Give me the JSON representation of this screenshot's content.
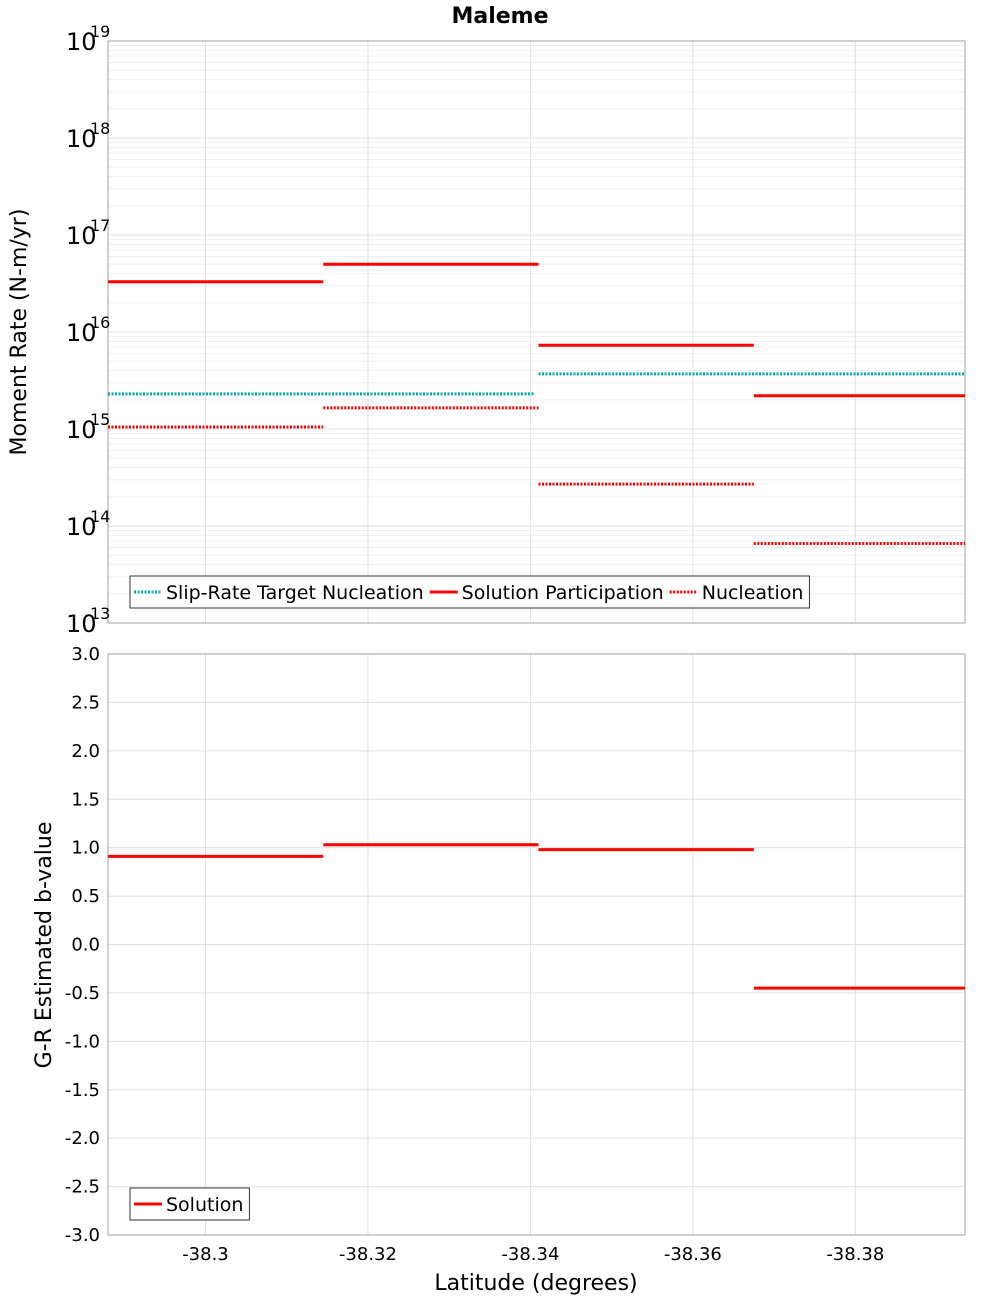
{
  "chart_data": [
    {
      "type": "line",
      "title": "Maleme",
      "xlabel": "",
      "ylabel": "Moment Rate (N-m/yr)",
      "xlim": [
        -38.288,
        -38.3935
      ],
      "x_reversed": true,
      "ylim": [
        10000000000000.0,
        1e+19
      ],
      "y_scale": "log",
      "grid": true,
      "y_ticks": [
        {
          "base": "10",
          "exp": "13"
        },
        {
          "base": "10",
          "exp": "14"
        },
        {
          "base": "10",
          "exp": "15"
        },
        {
          "base": "10",
          "exp": "16"
        },
        {
          "base": "10",
          "exp": "17"
        },
        {
          "base": "10",
          "exp": "18"
        },
        {
          "base": "10",
          "exp": "19"
        }
      ],
      "legend": {
        "placement": "bottom-left",
        "entries": [
          "Slip-Rate Target Nucleation",
          "Solution Participation",
          "Nucleation"
        ]
      },
      "series": [
        {
          "name": "Slip-Rate Target Nucleation",
          "color": "#00aaaa",
          "style": "dotted",
          "segments": [
            {
              "x0": -38.288,
              "x1": -38.3405,
              "y": 2300000000000000.0
            },
            {
              "x0": -38.341,
              "x1": -38.3935,
              "y": 3700000000000000.0
            }
          ]
        },
        {
          "name": "Solution Participation",
          "color": "#ff0000",
          "style": "solid",
          "segments": [
            {
              "x0": -38.288,
              "x1": -38.3145,
              "y": 3.3e+16
            },
            {
              "x0": -38.3145,
              "x1": -38.341,
              "y": 5e+16
            },
            {
              "x0": -38.341,
              "x1": -38.3675,
              "y": 7300000000000000.0
            },
            {
              "x0": -38.3675,
              "x1": -38.3935,
              "y": 2200000000000000.0
            }
          ]
        },
        {
          "name": "Nucleation",
          "color": "#ff0000",
          "style": "dotted",
          "segments": [
            {
              "x0": -38.288,
              "x1": -38.3145,
              "y": 1050000000000000.0
            },
            {
              "x0": -38.3145,
              "x1": -38.341,
              "y": 1650000000000000.0
            },
            {
              "x0": -38.341,
              "x1": -38.3675,
              "y": 270000000000000.0
            },
            {
              "x0": -38.3675,
              "x1": -38.3935,
              "y": 66000000000000.0
            }
          ]
        }
      ]
    },
    {
      "type": "line",
      "title": "",
      "xlabel": "Latitude (degrees)",
      "ylabel": "G-R Estimated b-value",
      "xlim": [
        -38.288,
        -38.3935
      ],
      "x_reversed": true,
      "ylim": [
        -3.0,
        3.0
      ],
      "grid": true,
      "x_ticks": [
        "-38.3",
        "-38.32",
        "-38.34",
        "-38.36",
        "-38.38"
      ],
      "y_ticks": [
        "3.0",
        "2.5",
        "2.0",
        "1.5",
        "1.0",
        "0.5",
        "0.0",
        "-0.5",
        "-1.0",
        "-1.5",
        "-2.0",
        "-2.5",
        "-3.0"
      ],
      "legend": {
        "placement": "bottom-left",
        "entries": [
          "Solution"
        ]
      },
      "series": [
        {
          "name": "Solution",
          "color": "#ff0000",
          "style": "solid",
          "segments": [
            {
              "x0": -38.288,
              "x1": -38.3145,
              "y": 0.91
            },
            {
              "x0": -38.3145,
              "x1": -38.341,
              "y": 1.03
            },
            {
              "x0": -38.341,
              "x1": -38.3675,
              "y": 0.98
            },
            {
              "x0": -38.3675,
              "x1": -38.3935,
              "y": -0.45
            }
          ]
        }
      ]
    }
  ]
}
